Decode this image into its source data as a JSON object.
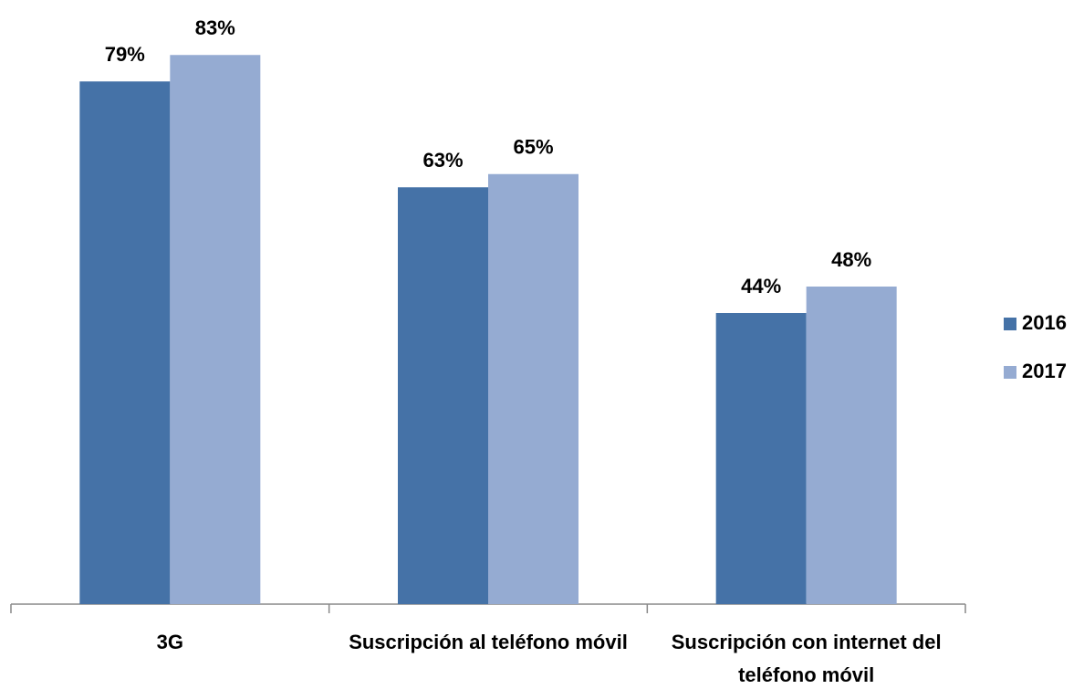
{
  "chart_data": {
    "type": "bar",
    "categories": [
      "3G",
      "Suscripción al teléfono móvil",
      "Suscripción con internet del teléfono móvil"
    ],
    "series": [
      {
        "name": "2016",
        "color": "#4572a7",
        "values": [
          79,
          63,
          44
        ],
        "value_labels": [
          "79%",
          "63%",
          "44%"
        ]
      },
      {
        "name": "2017",
        "color": "#95abd2",
        "values": [
          83,
          65,
          48
        ],
        "value_labels": [
          "83%",
          "65%",
          "48%"
        ]
      }
    ],
    "legend": "right"
  }
}
